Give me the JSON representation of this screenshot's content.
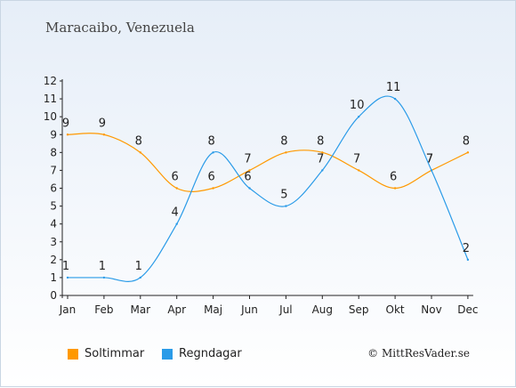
{
  "chart_data": {
    "type": "line",
    "title": "Maracaibo, Venezuela",
    "categories": [
      "Jan",
      "Feb",
      "Mar",
      "Apr",
      "Maj",
      "Jun",
      "Jul",
      "Aug",
      "Sep",
      "Okt",
      "Nov",
      "Dec"
    ],
    "series": [
      {
        "name": "Soltimmar",
        "color": "#ff9900",
        "values": [
          9,
          9,
          8,
          6,
          6,
          7,
          8,
          8,
          7,
          6,
          7,
          8
        ]
      },
      {
        "name": "Regndagar",
        "color": "#2a9be8",
        "values": [
          1,
          1,
          1,
          4,
          8,
          6,
          5,
          7,
          10,
          11,
          7,
          2
        ]
      }
    ],
    "ylim": [
      0,
      12
    ],
    "yticks": [
      "0",
      "1",
      "2",
      "3",
      "4",
      "5",
      "6",
      "7",
      "8",
      "9",
      "10",
      "11",
      "12"
    ],
    "grid": false,
    "legend": "bottom"
  },
  "copyright": "© MittResVader.se"
}
